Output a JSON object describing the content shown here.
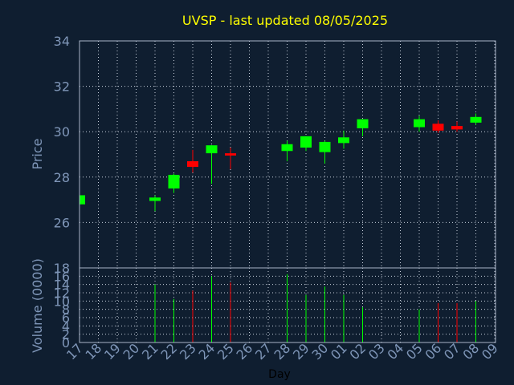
{
  "chart_data": [
    {
      "type": "candlestick",
      "title": "UVSP - last updated 08/05/2025",
      "ylabel": "Price",
      "ylim": [
        24,
        34
      ],
      "yticks": [
        "26",
        "28",
        "30",
        "32",
        "34"
      ],
      "grid": true,
      "colors": {
        "up": "#00ff00",
        "down": "#ff0000"
      },
      "candles": [
        {
          "day": "17",
          "open": 26.8,
          "high": 27.2,
          "low": 26.8,
          "close": 27.2
        },
        {
          "day": "21",
          "open": 26.95,
          "high": 27.2,
          "low": 26.5,
          "close": 27.1
        },
        {
          "day": "22",
          "open": 27.5,
          "high": 28.15,
          "low": 27.3,
          "close": 28.1
        },
        {
          "day": "23",
          "open": 28.7,
          "high": 29.2,
          "low": 28.2,
          "close": 28.45
        },
        {
          "day": "24",
          "open": 29.05,
          "high": 29.4,
          "low": 27.7,
          "close": 29.4
        },
        {
          "day": "25",
          "open": 29.05,
          "high": 29.3,
          "low": 28.35,
          "close": 28.95
        },
        {
          "day": "28",
          "open": 29.15,
          "high": 29.6,
          "low": 28.7,
          "close": 29.45
        },
        {
          "day": "29",
          "open": 29.3,
          "high": 29.8,
          "low": 29.15,
          "close": 29.8
        },
        {
          "day": "30",
          "open": 29.1,
          "high": 29.6,
          "low": 28.6,
          "close": 29.55
        },
        {
          "day": "01",
          "open": 29.5,
          "high": 30.05,
          "low": 29.25,
          "close": 29.75
        },
        {
          "day": "02",
          "open": 30.15,
          "high": 30.55,
          "low": 29.8,
          "close": 30.55
        },
        {
          "day": "05",
          "open": 30.2,
          "high": 30.7,
          "low": 30.0,
          "close": 30.55
        },
        {
          "day": "06",
          "open": 30.35,
          "high": 30.5,
          "low": 29.95,
          "close": 30.05
        },
        {
          "day": "07",
          "open": 30.25,
          "high": 30.45,
          "low": 30.0,
          "close": 30.1
        },
        {
          "day": "08",
          "open": 30.4,
          "high": 30.8,
          "low": 30.3,
          "close": 30.65
        }
      ]
    },
    {
      "type": "bar",
      "ylabel": "Volume (0000)",
      "xlabel": "Day",
      "ylim": [
        0,
        18
      ],
      "yticks": [
        "0",
        "2",
        "4",
        "6",
        "8",
        "10",
        "12",
        "14",
        "16",
        "18"
      ],
      "categories": [
        "17",
        "18",
        "19",
        "20",
        "21",
        "22",
        "23",
        "24",
        "25",
        "26",
        "27",
        "28",
        "29",
        "30",
        "01",
        "02",
        "03",
        "04",
        "05",
        "06",
        "07",
        "08",
        "09"
      ],
      "volumes": [
        {
          "day": "21",
          "value": 14,
          "dir": "up"
        },
        {
          "day": "22",
          "value": 10.5,
          "dir": "up"
        },
        {
          "day": "23",
          "value": 12.5,
          "dir": "down"
        },
        {
          "day": "24",
          "value": 16,
          "dir": "up"
        },
        {
          "day": "25",
          "value": 14.5,
          "dir": "down"
        },
        {
          "day": "28",
          "value": 16.5,
          "dir": "up"
        },
        {
          "day": "29",
          "value": 11.5,
          "dir": "up"
        },
        {
          "day": "30",
          "value": 13.5,
          "dir": "up"
        },
        {
          "day": "01",
          "value": 11.5,
          "dir": "up"
        },
        {
          "day": "02",
          "value": 8.5,
          "dir": "up"
        },
        {
          "day": "05",
          "value": 8,
          "dir": "up"
        },
        {
          "day": "06",
          "value": 9.5,
          "dir": "down"
        },
        {
          "day": "07",
          "value": 9.5,
          "dir": "down"
        },
        {
          "day": "08",
          "value": 10,
          "dir": "up"
        }
      ]
    }
  ]
}
